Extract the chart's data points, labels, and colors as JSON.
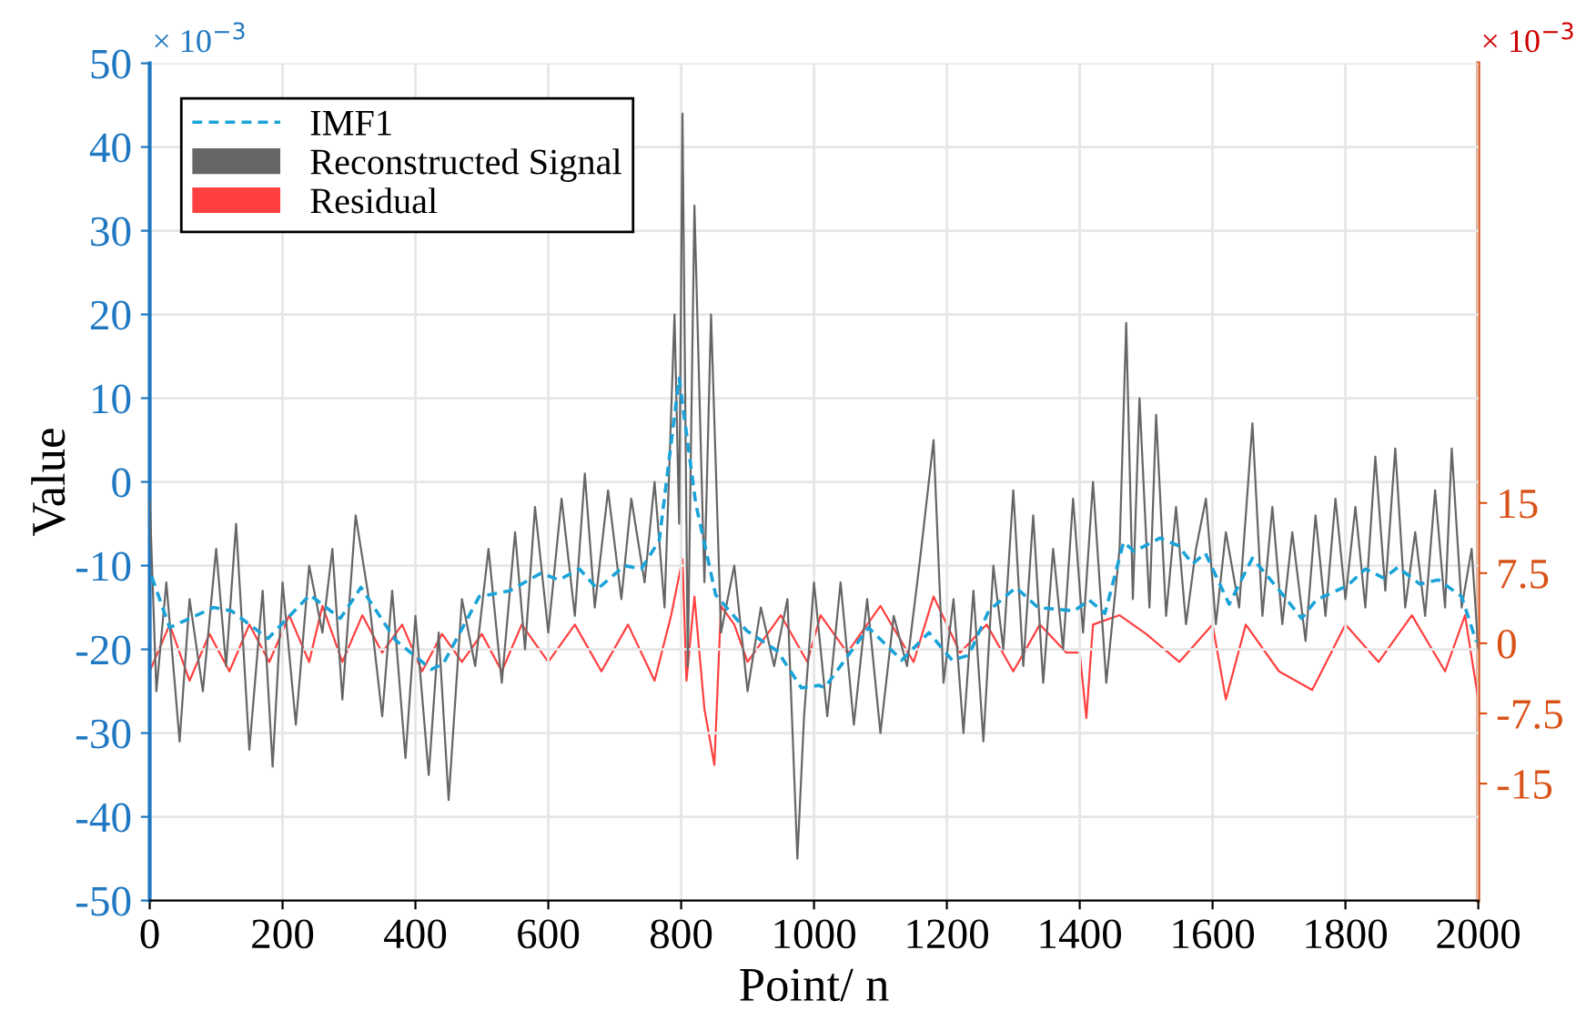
{
  "chart_data": {
    "type": "line",
    "xlabel": "Point/ n",
    "ylabel": "Value",
    "xlim": [
      0,
      2000
    ],
    "xticks": [
      0,
      200,
      400,
      600,
      800,
      1000,
      1200,
      1400,
      1600,
      1800,
      2000
    ],
    "ylim": [
      -50,
      50
    ],
    "yticks": [
      -50,
      -40,
      -30,
      -20,
      -10,
      0,
      10,
      20,
      30,
      40,
      50
    ],
    "y2lim": [
      -27.5,
      62
    ],
    "y2ticks": [
      -15,
      -7.5,
      0,
      7.5,
      15
    ],
    "grid": true,
    "legend": "top left",
    "annotations": [
      "× 10$^{−3}$",
      "× 10$^{−3}$"
    ],
    "series": [
      {
        "name": "Reconstructed Signal",
        "color": "#666666",
        "line_style": "solid",
        "x": [
          0,
          10,
          25,
          45,
          60,
          80,
          100,
          115,
          130,
          150,
          170,
          185,
          200,
          220,
          240,
          260,
          275,
          290,
          310,
          330,
          350,
          365,
          385,
          400,
          420,
          435,
          450,
          470,
          490,
          510,
          530,
          550,
          565,
          580,
          600,
          620,
          640,
          655,
          670,
          690,
          710,
          725,
          745,
          760,
          775,
          790,
          797,
          802,
          810,
          820,
          835,
          845,
          860,
          880,
          900,
          920,
          940,
          960,
          975,
          985,
          1000,
          1020,
          1040,
          1060,
          1080,
          1100,
          1120,
          1140,
          1160,
          1180,
          1195,
          1210,
          1225,
          1240,
          1255,
          1270,
          1285,
          1300,
          1315,
          1330,
          1345,
          1360,
          1375,
          1390,
          1405,
          1420,
          1440,
          1460,
          1470,
          1480,
          1490,
          1505,
          1515,
          1530,
          1545,
          1560,
          1575,
          1590,
          1605,
          1620,
          1640,
          1660,
          1675,
          1690,
          1705,
          1720,
          1740,
          1755,
          1770,
          1785,
          1800,
          1815,
          1830,
          1845,
          1860,
          1875,
          1890,
          1905,
          1920,
          1935,
          1950,
          1960,
          1975,
          1990,
          2000
        ],
        "values": [
          -2,
          -25,
          -12,
          -31,
          -14,
          -25,
          -8,
          -22,
          -5,
          -32,
          -13,
          -34,
          -12,
          -29,
          -10,
          -18,
          -8,
          -26,
          -4,
          -14,
          -28,
          -13,
          -33,
          -16,
          -35,
          -18,
          -38,
          -14,
          -22,
          -8,
          -24,
          -6,
          -20,
          -3,
          -18,
          -2,
          -16,
          1,
          -15,
          -1,
          -14,
          -2,
          -12,
          0,
          -15,
          20,
          -5,
          44,
          -22,
          33,
          -12,
          20,
          -18,
          -10,
          -25,
          -15,
          -22,
          -14,
          -45,
          -28,
          -12,
          -28,
          -12,
          -29,
          -14,
          -30,
          -16,
          -22,
          -9,
          5,
          -24,
          -14,
          -30,
          -13,
          -31,
          -10,
          -20,
          -1,
          -22,
          -4,
          -24,
          -8,
          -20,
          -2,
          -18,
          0,
          -24,
          -8,
          19,
          -14,
          10,
          -15,
          8,
          -16,
          -3,
          -17,
          -8,
          -2,
          -17,
          -6,
          -15,
          7,
          -16,
          -3,
          -17,
          -6,
          -19,
          -4,
          -16,
          -2,
          -14,
          -3,
          -15,
          3,
          -13,
          4,
          -15,
          -6,
          -16,
          -1,
          -15,
          4,
          -15,
          -8,
          -20
        ]
      },
      {
        "name": "Residual",
        "color": "#ff4040",
        "line_style": "solid",
        "axis": "y2",
        "x": [
          0,
          30,
          60,
          90,
          120,
          150,
          180,
          210,
          240,
          260,
          290,
          320,
          350,
          380,
          410,
          440,
          470,
          500,
          530,
          560,
          600,
          640,
          680,
          720,
          760,
          785,
          802,
          808,
          820,
          835,
          850,
          860,
          880,
          900,
          950,
          990,
          1010,
          1050,
          1100,
          1150,
          1180,
          1220,
          1260,
          1300,
          1340,
          1380,
          1400,
          1410,
          1420,
          1460,
          1500,
          1550,
          1600,
          1620,
          1650,
          1700,
          1750,
          1800,
          1850,
          1900,
          1950,
          1980,
          2000
        ],
        "values": [
          -3,
          2,
          -4,
          1,
          -3,
          2,
          -2,
          3,
          -2,
          4,
          -2,
          3,
          -1,
          2,
          -3,
          1,
          -2,
          1,
          -3,
          2,
          -2,
          2,
          -3,
          2,
          -4,
          3,
          9,
          -4,
          5,
          -7,
          -13,
          4,
          2,
          -2,
          3,
          -2,
          3,
          -1,
          4,
          -2,
          5,
          -1,
          2,
          -3,
          2,
          -1,
          -1,
          -8,
          2,
          3,
          1,
          -2,
          2,
          -6,
          2,
          -3,
          -5,
          2,
          -2,
          3,
          -3,
          3,
          -6
        ]
      },
      {
        "name": "IMF1",
        "color": "#1aa3d9",
        "line_style": "dashed",
        "x": [
          3,
          30,
          96,
          123,
          178,
          241,
          287,
          318,
          370,
          424,
          442,
          496,
          542,
          589,
          616,
          647,
          674,
          715,
          740,
          767,
          797,
          822,
          852,
          899,
          945,
          981,
          1008,
          1016,
          1082,
          1132,
          1173,
          1208,
          1233,
          1263,
          1304,
          1337,
          1392,
          1414,
          1438,
          1466,
          1482,
          1521,
          1548,
          1570,
          1589,
          1625,
          1660,
          1701,
          1734,
          1756,
          1803,
          1830,
          1858,
          1879,
          1912,
          1940,
          1975,
          1997
        ],
        "values": [
          -11.3,
          -17.4,
          -15,
          -15.4,
          -18.7,
          -13.5,
          -16.3,
          -12.6,
          -18.9,
          -22.4,
          -21.7,
          -13.7,
          -13,
          -10.9,
          -11.7,
          -10.4,
          -12.8,
          -10,
          -10.4,
          -7,
          12.4,
          -2.6,
          -13.5,
          -17.8,
          -20.2,
          -24.6,
          -24.3,
          -24.6,
          -17.4,
          -21.3,
          -18,
          -21.3,
          -20.7,
          -15.4,
          -12.6,
          -15,
          -15.4,
          -14.1,
          -15.7,
          -7.2,
          -8.3,
          -6.7,
          -7.6,
          -9.8,
          -8.5,
          -14.6,
          -9.1,
          -13,
          -16.3,
          -14.1,
          -12.4,
          -10.4,
          -11.5,
          -10.2,
          -12.2,
          -11.7,
          -13.7,
          -19.1
        ]
      }
    ]
  }
}
